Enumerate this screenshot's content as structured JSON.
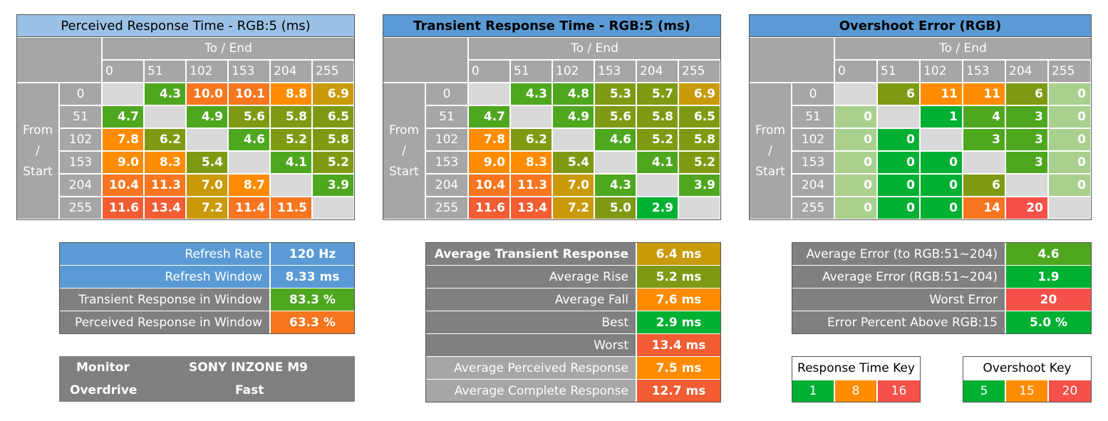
{
  "colors": {
    "green": "#00b033",
    "yellowgreen": "#4fa71f",
    "olive": "#7e9a12",
    "amber": "#c99a0a",
    "orange": "#ff8c00",
    "darkorange": "#f7761f",
    "redorange": "#f25d33",
    "red": "#f4514a",
    "lightgreen": "#a9d08e",
    "blue": "#5b9bd5",
    "lightblue": "#9bc2e6",
    "grey": "#a6a6a6",
    "darkgrey": "#808080",
    "blank": "#d9d9d9"
  },
  "matrices": [
    {
      "title": "Perceived Response Time - RGB:5 (ms)",
      "to_label": "To / End",
      "from_label": [
        "From",
        "/",
        "Start"
      ],
      "columns": [
        "0",
        "51",
        "102",
        "153",
        "204",
        "255"
      ],
      "rows": [
        {
          "label": "0",
          "cells": [
            {
              "v": "",
              "c": "blank"
            },
            {
              "v": "4.3",
              "c": "yellowgreen"
            },
            {
              "v": "10.0",
              "c": "darkorange"
            },
            {
              "v": "10.1",
              "c": "darkorange"
            },
            {
              "v": "8.8",
              "c": "orange"
            },
            {
              "v": "6.9",
              "c": "amber"
            }
          ]
        },
        {
          "label": "51",
          "cells": [
            {
              "v": "4.7",
              "c": "yellowgreen"
            },
            {
              "v": "",
              "c": "blank"
            },
            {
              "v": "4.9",
              "c": "yellowgreen"
            },
            {
              "v": "5.6",
              "c": "olive"
            },
            {
              "v": "5.8",
              "c": "olive"
            },
            {
              "v": "6.5",
              "c": "olive"
            }
          ]
        },
        {
          "label": "102",
          "cells": [
            {
              "v": "7.8",
              "c": "orange"
            },
            {
              "v": "6.2",
              "c": "olive"
            },
            {
              "v": "",
              "c": "blank"
            },
            {
              "v": "4.6",
              "c": "yellowgreen"
            },
            {
              "v": "5.2",
              "c": "olive"
            },
            {
              "v": "5.8",
              "c": "olive"
            }
          ]
        },
        {
          "label": "153",
          "cells": [
            {
              "v": "9.0",
              "c": "orange"
            },
            {
              "v": "8.3",
              "c": "orange"
            },
            {
              "v": "5.4",
              "c": "olive"
            },
            {
              "v": "",
              "c": "blank"
            },
            {
              "v": "4.1",
              "c": "yellowgreen"
            },
            {
              "v": "5.2",
              "c": "olive"
            }
          ]
        },
        {
          "label": "204",
          "cells": [
            {
              "v": "10.4",
              "c": "darkorange"
            },
            {
              "v": "11.3",
              "c": "darkorange"
            },
            {
              "v": "7.0",
              "c": "amber"
            },
            {
              "v": "8.7",
              "c": "orange"
            },
            {
              "v": "",
              "c": "blank"
            },
            {
              "v": "3.9",
              "c": "yellowgreen"
            }
          ]
        },
        {
          "label": "255",
          "cells": [
            {
              "v": "11.6",
              "c": "redorange"
            },
            {
              "v": "13.4",
              "c": "redorange"
            },
            {
              "v": "7.2",
              "c": "amber"
            },
            {
              "v": "11.4",
              "c": "darkorange"
            },
            {
              "v": "11.5",
              "c": "darkorange"
            },
            {
              "v": "",
              "c": "blank"
            }
          ]
        }
      ]
    },
    {
      "title": "Transient Response Time - RGB:5 (ms)",
      "to_label": "To / End",
      "from_label": [
        "From",
        "/",
        "Start"
      ],
      "columns": [
        "0",
        "51",
        "102",
        "153",
        "204",
        "255"
      ],
      "rows": [
        {
          "label": "0",
          "cells": [
            {
              "v": "",
              "c": "blank"
            },
            {
              "v": "4.3",
              "c": "yellowgreen"
            },
            {
              "v": "4.8",
              "c": "yellowgreen"
            },
            {
              "v": "5.3",
              "c": "olive"
            },
            {
              "v": "5.7",
              "c": "olive"
            },
            {
              "v": "6.9",
              "c": "amber"
            }
          ]
        },
        {
          "label": "51",
          "cells": [
            {
              "v": "4.7",
              "c": "yellowgreen"
            },
            {
              "v": "",
              "c": "blank"
            },
            {
              "v": "4.9",
              "c": "yellowgreen"
            },
            {
              "v": "5.6",
              "c": "olive"
            },
            {
              "v": "5.8",
              "c": "olive"
            },
            {
              "v": "6.5",
              "c": "olive"
            }
          ]
        },
        {
          "label": "102",
          "cells": [
            {
              "v": "7.8",
              "c": "orange"
            },
            {
              "v": "6.2",
              "c": "olive"
            },
            {
              "v": "",
              "c": "blank"
            },
            {
              "v": "4.6",
              "c": "yellowgreen"
            },
            {
              "v": "5.2",
              "c": "olive"
            },
            {
              "v": "5.8",
              "c": "olive"
            }
          ]
        },
        {
          "label": "153",
          "cells": [
            {
              "v": "9.0",
              "c": "orange"
            },
            {
              "v": "8.3",
              "c": "orange"
            },
            {
              "v": "5.4",
              "c": "olive"
            },
            {
              "v": "",
              "c": "blank"
            },
            {
              "v": "4.1",
              "c": "yellowgreen"
            },
            {
              "v": "5.2",
              "c": "olive"
            }
          ]
        },
        {
          "label": "204",
          "cells": [
            {
              "v": "10.4",
              "c": "darkorange"
            },
            {
              "v": "11.3",
              "c": "darkorange"
            },
            {
              "v": "7.0",
              "c": "amber"
            },
            {
              "v": "4.3",
              "c": "yellowgreen"
            },
            {
              "v": "",
              "c": "blank"
            },
            {
              "v": "3.9",
              "c": "yellowgreen"
            }
          ]
        },
        {
          "label": "255",
          "cells": [
            {
              "v": "11.6",
              "c": "redorange"
            },
            {
              "v": "13.4",
              "c": "redorange"
            },
            {
              "v": "7.2",
              "c": "amber"
            },
            {
              "v": "5.0",
              "c": "olive"
            },
            {
              "v": "2.9",
              "c": "green"
            },
            {
              "v": "",
              "c": "blank"
            }
          ]
        }
      ]
    },
    {
      "title": "Overshoot Error (RGB)",
      "to_label": "To / End",
      "from_label": [
        "From",
        "/",
        "Start"
      ],
      "columns": [
        "0",
        "51",
        "102",
        "153",
        "204",
        "255"
      ],
      "rows": [
        {
          "label": "0",
          "cells": [
            {
              "v": "",
              "c": "blank"
            },
            {
              "v": "6",
              "c": "olive"
            },
            {
              "v": "11",
              "c": "orange"
            },
            {
              "v": "11",
              "c": "orange"
            },
            {
              "v": "6",
              "c": "olive"
            },
            {
              "v": "0",
              "c": "lightgreen"
            }
          ]
        },
        {
          "label": "51",
          "cells": [
            {
              "v": "0",
              "c": "lightgreen"
            },
            {
              "v": "",
              "c": "blank"
            },
            {
              "v": "1",
              "c": "green"
            },
            {
              "v": "4",
              "c": "yellowgreen"
            },
            {
              "v": "3",
              "c": "yellowgreen"
            },
            {
              "v": "0",
              "c": "lightgreen"
            }
          ]
        },
        {
          "label": "102",
          "cells": [
            {
              "v": "0",
              "c": "lightgreen"
            },
            {
              "v": "0",
              "c": "green"
            },
            {
              "v": "",
              "c": "blank"
            },
            {
              "v": "3",
              "c": "yellowgreen"
            },
            {
              "v": "3",
              "c": "yellowgreen"
            },
            {
              "v": "0",
              "c": "lightgreen"
            }
          ]
        },
        {
          "label": "153",
          "cells": [
            {
              "v": "0",
              "c": "lightgreen"
            },
            {
              "v": "0",
              "c": "green"
            },
            {
              "v": "0",
              "c": "green"
            },
            {
              "v": "",
              "c": "blank"
            },
            {
              "v": "3",
              "c": "yellowgreen"
            },
            {
              "v": "0",
              "c": "lightgreen"
            }
          ]
        },
        {
          "label": "204",
          "cells": [
            {
              "v": "0",
              "c": "lightgreen"
            },
            {
              "v": "0",
              "c": "green"
            },
            {
              "v": "0",
              "c": "green"
            },
            {
              "v": "6",
              "c": "olive"
            },
            {
              "v": "",
              "c": "blank"
            },
            {
              "v": "0",
              "c": "lightgreen"
            }
          ]
        },
        {
          "label": "255",
          "cells": [
            {
              "v": "0",
              "c": "lightgreen"
            },
            {
              "v": "0",
              "c": "green"
            },
            {
              "v": "0",
              "c": "green"
            },
            {
              "v": "14",
              "c": "darkorange"
            },
            {
              "v": "20",
              "c": "red"
            },
            {
              "v": "",
              "c": "blank"
            }
          ]
        }
      ]
    }
  ],
  "refresh": {
    "rows": [
      {
        "label": "Refresh Rate",
        "value": "120 Hz",
        "label_color": "blue",
        "value_color": "blue"
      },
      {
        "label": "Refresh Window",
        "value": "8.33 ms",
        "label_color": "blue",
        "value_color": "blue"
      },
      {
        "label": "Transient Response in Window",
        "value": "83.3 %",
        "label_color": "darkgrey",
        "value_color": "yellowgreen"
      },
      {
        "label": "Perceived Response in Window",
        "value": "63.3 %",
        "label_color": "darkgrey",
        "value_color": "darkorange"
      }
    ]
  },
  "monitor": {
    "monitor_label": "Monitor",
    "monitor_value": "SONY INZONE M9",
    "overdrive_label": "Overdrive",
    "overdrive_value": "Fast"
  },
  "transient_summary": {
    "rows": [
      {
        "label": "Average Transient Response",
        "value": "6.4 ms",
        "bold": true,
        "label_color": "darkgrey",
        "value_color": "amber"
      },
      {
        "label": "Average Rise",
        "value": "5.2 ms",
        "bold": false,
        "label_color": "darkgrey",
        "value_color": "olive"
      },
      {
        "label": "Average Fall",
        "value": "7.6 ms",
        "bold": false,
        "label_color": "darkgrey",
        "value_color": "orange"
      },
      {
        "label": "Best",
        "value": "2.9 ms",
        "bold": false,
        "label_color": "darkgrey",
        "value_color": "green"
      },
      {
        "label": "Worst",
        "value": "13.4 ms",
        "bold": false,
        "label_color": "darkgrey",
        "value_color": "redorange"
      },
      {
        "label": "Average Perceived Response",
        "value": "7.5 ms",
        "bold": false,
        "label_color": "grey",
        "value_color": "orange"
      },
      {
        "label": "Average Complete Response",
        "value": "12.7 ms",
        "bold": false,
        "label_color": "grey",
        "value_color": "redorange"
      }
    ]
  },
  "overshoot_summary": {
    "rows": [
      {
        "label": "Average Error (to RGB:51~204)",
        "value": "4.6",
        "value_color": "yellowgreen"
      },
      {
        "label": "Average Error (RGB:51~204)",
        "value": "1.9",
        "value_color": "green"
      },
      {
        "label": "Worst Error",
        "value": "20",
        "value_color": "red"
      },
      {
        "label": "Error Percent Above RGB:15",
        "value": "5.0 %",
        "value_color": "green"
      }
    ]
  },
  "response_key": {
    "title": "Response Time Key",
    "items": [
      {
        "v": "1",
        "c": "green"
      },
      {
        "v": "8",
        "c": "orange"
      },
      {
        "v": "16",
        "c": "red"
      }
    ]
  },
  "overshoot_key": {
    "title": "Overshoot Key",
    "items": [
      {
        "v": "5",
        "c": "green"
      },
      {
        "v": "15",
        "c": "orange"
      },
      {
        "v": "20",
        "c": "red"
      }
    ]
  }
}
